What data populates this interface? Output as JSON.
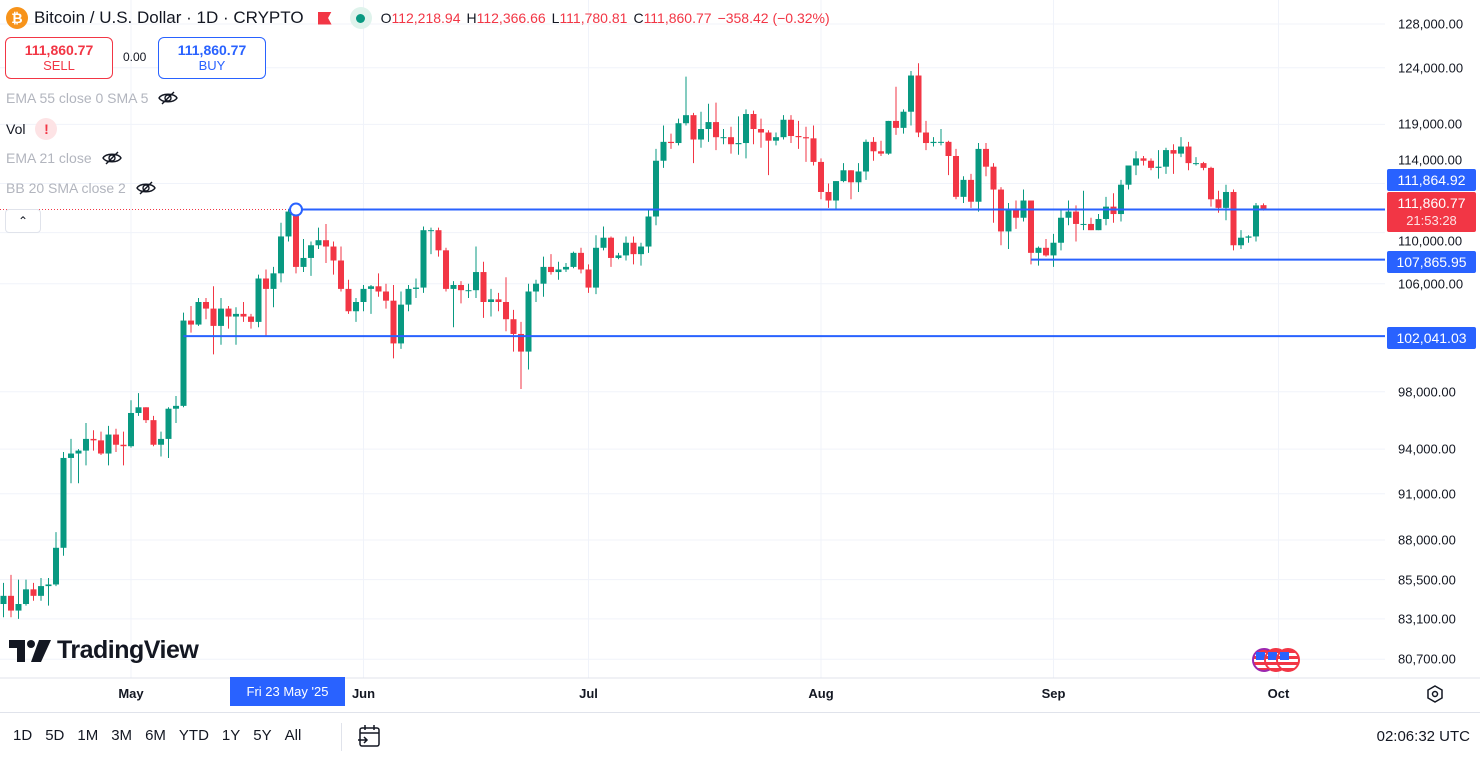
{
  "header": {
    "title": "Bitcoin / U.S. Dollar · 1D · CRYPTO",
    "coin_glyph": "₿",
    "ohlc": {
      "o_label": "O",
      "o": "112,218.94",
      "h_label": "H",
      "h": "112,366.66",
      "l_label": "L",
      "l": "111,780.81",
      "c_label": "C",
      "c": "111,860.77",
      "change": "−358.42 (−0.32%)"
    }
  },
  "trade": {
    "sell_price": "111,860.77",
    "sell_label": "SELL",
    "spread": "0.00",
    "buy_price": "111,860.77",
    "buy_label": "BUY"
  },
  "indicators": [
    {
      "label": "EMA 55 close 0 SMA 5",
      "icon": "eye-off-icon"
    },
    {
      "label": "Vol",
      "icon": "warning-icon",
      "warn": "!"
    },
    {
      "label": "EMA 21 close",
      "icon": "eye-off-icon"
    },
    {
      "label": "BB 20 SMA close 2",
      "icon": "eye-off-icon"
    }
  ],
  "collapse_glyph": "⌃",
  "price_labels": {
    "alert_high": "111,864.92",
    "last": "111,860.77",
    "countdown": "21:53:28",
    "support1": "107,865.95",
    "support2": "102,041.03"
  },
  "crosshair_date": "Fri 23 May '25",
  "logo": "TradingView",
  "ranges": [
    "1D",
    "5D",
    "1M",
    "3M",
    "6M",
    "YTD",
    "1Y",
    "5Y",
    "All"
  ],
  "clock": "02:06:32 UTC",
  "colors": {
    "up": "#089981",
    "down": "#f23645",
    "line": "#2962ff"
  },
  "chart_data": {
    "type": "candlestick",
    "title": "Bitcoin / U.S. Dollar · 1D · CRYPTO",
    "scale": "log",
    "units": "USD thousands",
    "x_ticks": [
      {
        "label": "May",
        "index": 17
      },
      {
        "label": "Jun",
        "index": 48
      },
      {
        "label": "Jul",
        "index": 78
      },
      {
        "label": "Aug",
        "index": 109
      },
      {
        "label": "Sep",
        "index": 140
      },
      {
        "label": "Oct",
        "index": 170
      }
    ],
    "y_ticks": [
      {
        "v": 128,
        "label": "128,000.00"
      },
      {
        "v": 124,
        "label": "124,000.00"
      },
      {
        "v": 119,
        "label": "119,000.00"
      },
      {
        "v": 114,
        "label": "114,000.00"
      },
      {
        "v": 110,
        "label": "110,000.00"
      },
      {
        "v": 106,
        "label": "106,000.00"
      },
      {
        "v": 98,
        "label": "98,000.00"
      },
      {
        "v": 94,
        "label": "94,000.00"
      },
      {
        "v": 91,
        "label": "91,000.00"
      },
      {
        "v": 88,
        "label": "88,000.00"
      },
      {
        "v": 85.5,
        "label": "85,500.00"
      },
      {
        "v": 83.1,
        "label": "83,100.00"
      },
      {
        "v": 80.7,
        "label": "80,700.00"
      }
    ],
    "hlines": [
      {
        "v": 111.86492,
        "from": 38
      },
      {
        "v": 107.86595,
        "from": 137
      },
      {
        "v": 102.04103,
        "from": 24
      }
    ],
    "marker_index": 39,
    "ohlc": [
      [
        84.0,
        85.3,
        83.2,
        84.5
      ],
      [
        84.5,
        85.8,
        83.2,
        83.6
      ],
      [
        83.6,
        85.5,
        83.1,
        84.0
      ],
      [
        84.0,
        85.5,
        83.9,
        84.9
      ],
      [
        84.9,
        85.3,
        84.2,
        84.5
      ],
      [
        84.5,
        85.6,
        84.2,
        85.1
      ],
      [
        85.1,
        85.6,
        83.9,
        85.2
      ],
      [
        85.2,
        88.5,
        85.1,
        87.5
      ],
      [
        87.5,
        93.8,
        87.0,
        93.4
      ],
      [
        93.4,
        94.7,
        91.7,
        93.7
      ],
      [
        93.7,
        94.0,
        91.7,
        93.9
      ],
      [
        93.9,
        95.8,
        92.9,
        94.7
      ],
      [
        94.7,
        95.3,
        93.9,
        94.6
      ],
      [
        94.6,
        95.2,
        93.6,
        93.7
      ],
      [
        93.7,
        95.6,
        92.9,
        95.0
      ],
      [
        95.0,
        95.4,
        93.8,
        94.3
      ],
      [
        94.3,
        95.2,
        92.9,
        94.2
      ],
      [
        94.2,
        97.4,
        94.1,
        96.5
      ],
      [
        96.5,
        97.9,
        96.3,
        96.9
      ],
      [
        96.9,
        96.9,
        95.8,
        96.0
      ],
      [
        96.0,
        96.3,
        94.2,
        94.3
      ],
      [
        94.3,
        95.2,
        93.5,
        94.7
      ],
      [
        94.7,
        96.9,
        93.4,
        96.8
      ],
      [
        96.8,
        97.7,
        95.8,
        97.0
      ],
      [
        97.0,
        103.8,
        96.9,
        103.2
      ],
      [
        103.2,
        104.3,
        102.3,
        102.9
      ],
      [
        102.9,
        104.9,
        102.8,
        104.6
      ],
      [
        104.6,
        104.9,
        103.3,
        104.1
      ],
      [
        104.1,
        105.8,
        100.7,
        102.8
      ],
      [
        102.8,
        104.9,
        101.4,
        104.1
      ],
      [
        104.1,
        104.3,
        102.6,
        103.5
      ],
      [
        103.5,
        104.2,
        101.4,
        103.7
      ],
      [
        103.7,
        104.6,
        103.1,
        103.5
      ],
      [
        103.5,
        103.7,
        102.6,
        103.1
      ],
      [
        103.1,
        106.7,
        102.7,
        106.4
      ],
      [
        106.4,
        107.1,
        102.0,
        105.6
      ],
      [
        105.6,
        107.3,
        104.2,
        106.8
      ],
      [
        106.8,
        110.8,
        106.1,
        109.7
      ],
      [
        109.7,
        111.9,
        109.3,
        111.7
      ],
      [
        111.7,
        111.8,
        106.8,
        107.3
      ],
      [
        107.3,
        109.5,
        106.9,
        108.0
      ],
      [
        108.0,
        109.3,
        106.6,
        109.0
      ],
      [
        109.0,
        110.4,
        108.7,
        109.4
      ],
      [
        109.4,
        110.7,
        107.6,
        108.9
      ],
      [
        108.9,
        109.3,
        106.7,
        107.8
      ],
      [
        107.8,
        108.9,
        105.4,
        105.6
      ],
      [
        105.6,
        106.3,
        103.7,
        103.9
      ],
      [
        103.9,
        104.9,
        103.1,
        104.6
      ],
      [
        104.6,
        105.9,
        103.9,
        105.6
      ],
      [
        105.6,
        105.9,
        103.7,
        105.8
      ],
      [
        105.8,
        106.8,
        105.0,
        105.4
      ],
      [
        105.4,
        106.0,
        104.1,
        104.7
      ],
      [
        104.7,
        105.9,
        100.4,
        101.5
      ],
      [
        101.5,
        105.4,
        101.1,
        104.4
      ],
      [
        104.4,
        105.9,
        103.9,
        105.6
      ],
      [
        105.6,
        106.4,
        104.9,
        105.7
      ],
      [
        105.7,
        110.5,
        105.3,
        110.2
      ],
      [
        110.2,
        110.4,
        108.3,
        110.2
      ],
      [
        110.2,
        110.4,
        108.1,
        108.6
      ],
      [
        108.6,
        108.8,
        105.4,
        105.6
      ],
      [
        105.6,
        106.2,
        102.7,
        105.9
      ],
      [
        105.9,
        106.2,
        104.5,
        105.5
      ],
      [
        105.5,
        106.0,
        104.9,
        105.5
      ],
      [
        105.5,
        108.9,
        104.9,
        106.9
      ],
      [
        106.9,
        107.7,
        103.4,
        104.6
      ],
      [
        104.6,
        105.6,
        103.5,
        104.8
      ],
      [
        104.8,
        105.3,
        103.9,
        104.6
      ],
      [
        104.6,
        106.5,
        102.4,
        103.3
      ],
      [
        103.3,
        104.0,
        100.9,
        102.2
      ],
      [
        102.2,
        103.1,
        98.2,
        100.9
      ],
      [
        100.9,
        106.0,
        99.6,
        105.4
      ],
      [
        105.4,
        106.3,
        104.6,
        106.0
      ],
      [
        106.0,
        108.1,
        105.0,
        107.3
      ],
      [
        107.3,
        108.3,
        106.7,
        106.9
      ],
      [
        106.9,
        107.7,
        106.3,
        107.1
      ],
      [
        107.1,
        107.6,
        106.9,
        107.3
      ],
      [
        107.3,
        108.5,
        107.2,
        108.4
      ],
      [
        108.4,
        108.8,
        106.8,
        107.1
      ],
      [
        107.1,
        107.5,
        105.3,
        105.7
      ],
      [
        105.7,
        109.8,
        105.2,
        108.8
      ],
      [
        108.8,
        110.5,
        108.6,
        109.6
      ],
      [
        109.6,
        109.7,
        107.3,
        108.0
      ],
      [
        108.0,
        108.4,
        107.9,
        108.2
      ],
      [
        108.2,
        109.7,
        107.8,
        109.2
      ],
      [
        109.2,
        109.7,
        107.5,
        108.3
      ],
      [
        108.3,
        109.2,
        107.4,
        108.9
      ],
      [
        108.9,
        111.9,
        108.4,
        111.3
      ],
      [
        111.3,
        116.9,
        110.6,
        115.9
      ],
      [
        115.9,
        118.9,
        115.3,
        117.5
      ],
      [
        117.5,
        118.2,
        116.9,
        117.4
      ],
      [
        117.4,
        119.5,
        117.2,
        119.1
      ],
      [
        119.1,
        123.2,
        118.9,
        119.8
      ],
      [
        119.8,
        120.0,
        115.7,
        117.7
      ],
      [
        117.7,
        120.1,
        117.0,
        118.6
      ],
      [
        118.6,
        120.8,
        117.5,
        119.2
      ],
      [
        119.2,
        120.9,
        116.8,
        117.9
      ],
      [
        117.9,
        118.6,
        117.3,
        117.9
      ],
      [
        117.9,
        118.8,
        116.5,
        117.3
      ],
      [
        117.3,
        119.7,
        116.4,
        117.4
      ],
      [
        117.4,
        120.3,
        116.1,
        119.9
      ],
      [
        119.9,
        120.2,
        117.3,
        118.6
      ],
      [
        118.6,
        119.5,
        117.0,
        118.3
      ],
      [
        118.3,
        118.5,
        114.7,
        117.6
      ],
      [
        117.6,
        118.3,
        117.2,
        117.9
      ],
      [
        117.9,
        119.8,
        117.7,
        119.4
      ],
      [
        119.4,
        119.8,
        117.4,
        118.0
      ],
      [
        118.0,
        119.3,
        116.9,
        117.9
      ],
      [
        117.9,
        118.8,
        115.8,
        117.8
      ],
      [
        117.8,
        118.9,
        115.5,
        115.8
      ],
      [
        115.8,
        116.1,
        112.7,
        113.3
      ],
      [
        113.3,
        114.0,
        112.0,
        112.6
      ],
      [
        112.6,
        114.2,
        111.9,
        114.2
      ],
      [
        114.2,
        115.7,
        114.1,
        115.1
      ],
      [
        115.1,
        115.1,
        112.7,
        114.1
      ],
      [
        114.1,
        115.7,
        113.3,
        115.0
      ],
      [
        115.0,
        117.7,
        114.3,
        117.5
      ],
      [
        117.5,
        117.9,
        115.9,
        116.7
      ],
      [
        116.7,
        117.6,
        116.3,
        116.5
      ],
      [
        116.5,
        119.3,
        116.4,
        119.3
      ],
      [
        119.3,
        122.3,
        118.1,
        118.7
      ],
      [
        118.7,
        120.3,
        118.2,
        120.1
      ],
      [
        120.1,
        123.7,
        118.9,
        123.3
      ],
      [
        123.3,
        124.4,
        117.9,
        118.3
      ],
      [
        118.3,
        119.3,
        116.8,
        117.4
      ],
      [
        117.4,
        117.9,
        117.1,
        117.5
      ],
      [
        117.5,
        118.6,
        117.2,
        117.5
      ],
      [
        117.5,
        117.6,
        114.7,
        116.3
      ],
      [
        116.3,
        116.9,
        112.7,
        112.9
      ],
      [
        112.9,
        114.6,
        112.4,
        114.3
      ],
      [
        114.3,
        114.8,
        112.0,
        112.5
      ],
      [
        112.5,
        117.4,
        111.7,
        116.9
      ],
      [
        116.9,
        117.4,
        114.6,
        115.4
      ],
      [
        115.4,
        115.7,
        110.8,
        113.5
      ],
      [
        113.5,
        113.7,
        109.0,
        110.1
      ],
      [
        110.1,
        112.4,
        108.7,
        111.8
      ],
      [
        111.8,
        112.6,
        110.3,
        111.2
      ],
      [
        111.2,
        113.5,
        110.9,
        112.6
      ],
      [
        112.6,
        112.6,
        107.5,
        108.4
      ],
      [
        108.4,
        108.9,
        107.4,
        108.8
      ],
      [
        108.8,
        109.5,
        108.1,
        108.2
      ],
      [
        108.2,
        109.9,
        107.3,
        109.2
      ],
      [
        109.2,
        111.8,
        108.6,
        111.2
      ],
      [
        111.2,
        112.6,
        110.6,
        111.7
      ],
      [
        111.7,
        112.2,
        109.3,
        110.7
      ],
      [
        110.7,
        113.4,
        110.2,
        110.7
      ],
      [
        110.7,
        111.2,
        110.2,
        110.2
      ],
      [
        110.2,
        111.5,
        110.2,
        111.1
      ],
      [
        111.1,
        112.9,
        110.6,
        112.1
      ],
      [
        112.1,
        113.2,
        110.8,
        111.5
      ],
      [
        111.5,
        114.3,
        110.9,
        113.9
      ],
      [
        113.9,
        115.5,
        113.5,
        115.5
      ],
      [
        115.5,
        116.7,
        114.7,
        116.1
      ],
      [
        116.1,
        116.3,
        115.5,
        115.9
      ],
      [
        115.9,
        116.1,
        115.1,
        115.3
      ],
      [
        115.3,
        116.8,
        114.4,
        115.4
      ],
      [
        115.4,
        117.0,
        114.8,
        116.8
      ],
      [
        116.8,
        117.3,
        114.8,
        116.5
      ],
      [
        116.5,
        117.9,
        116.2,
        117.1
      ],
      [
        117.1,
        117.5,
        115.1,
        115.7
      ],
      [
        115.7,
        116.2,
        115.5,
        115.7
      ],
      [
        115.7,
        115.8,
        115.1,
        115.3
      ],
      [
        115.3,
        115.4,
        112.1,
        112.7
      ],
      [
        112.7,
        113.4,
        111.6,
        112.0
      ],
      [
        112.0,
        113.9,
        111.0,
        113.3
      ],
      [
        113.3,
        113.5,
        108.6,
        109.0
      ],
      [
        109.0,
        110.2,
        108.7,
        109.6
      ],
      [
        109.6,
        109.8,
        109.2,
        109.7
      ],
      [
        109.7,
        112.4,
        109.3,
        112.2
      ],
      [
        112.22,
        112.37,
        111.78,
        111.86
      ]
    ]
  }
}
